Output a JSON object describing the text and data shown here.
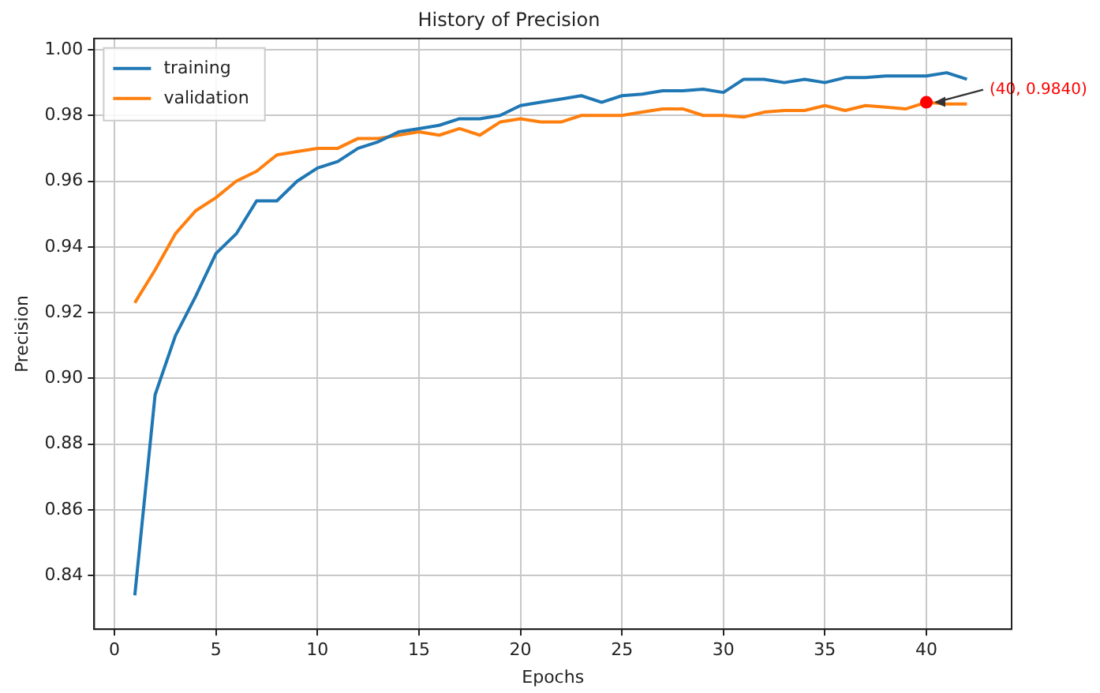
{
  "chart_data": {
    "type": "line",
    "title": "History of Precision",
    "xlabel": "Epochs",
    "ylabel": "Precision",
    "x": [
      1,
      2,
      3,
      4,
      5,
      6,
      7,
      8,
      9,
      10,
      11,
      12,
      13,
      14,
      15,
      16,
      17,
      18,
      19,
      20,
      21,
      22,
      23,
      24,
      25,
      26,
      27,
      28,
      29,
      30,
      31,
      32,
      33,
      34,
      35,
      36,
      37,
      38,
      39,
      40,
      41,
      42
    ],
    "series": [
      {
        "name": "training",
        "color": "#1f77b4",
        "values": [
          0.834,
          0.895,
          0.913,
          0.925,
          0.938,
          0.944,
          0.954,
          0.954,
          0.96,
          0.964,
          0.966,
          0.97,
          0.972,
          0.975,
          0.976,
          0.977,
          0.979,
          0.979,
          0.98,
          0.983,
          0.984,
          0.985,
          0.986,
          0.984,
          0.986,
          0.9865,
          0.9875,
          0.9875,
          0.988,
          0.987,
          0.991,
          0.991,
          0.99,
          0.991,
          0.99,
          0.9915,
          0.9915,
          0.992,
          0.992,
          0.992,
          0.993,
          0.991
        ]
      },
      {
        "name": "validation",
        "color": "#ff7f0e",
        "values": [
          0.923,
          0.933,
          0.944,
          0.951,
          0.955,
          0.96,
          0.963,
          0.968,
          0.969,
          0.97,
          0.97,
          0.973,
          0.973,
          0.974,
          0.975,
          0.974,
          0.976,
          0.974,
          0.978,
          0.979,
          0.978,
          0.978,
          0.98,
          0.98,
          0.98,
          0.981,
          0.982,
          0.982,
          0.98,
          0.98,
          0.9795,
          0.981,
          0.9815,
          0.9815,
          0.983,
          0.9815,
          0.983,
          0.9825,
          0.982,
          0.984,
          0.9835,
          0.9835
        ]
      }
    ],
    "xlim": [
      -1,
      44.2
    ],
    "xticks": [
      0,
      5,
      10,
      15,
      20,
      25,
      30,
      35,
      40
    ],
    "ylim": [
      0.8237,
      1.0034
    ],
    "yticks": [
      {
        "value": 0.84,
        "label": "0.84"
      },
      {
        "value": 0.86,
        "label": "0.86"
      },
      {
        "value": 0.88,
        "label": "0.88"
      },
      {
        "value": 0.9,
        "label": "0.90"
      },
      {
        "value": 0.92,
        "label": "0.92"
      },
      {
        "value": 0.94,
        "label": "0.94"
      },
      {
        "value": 0.96,
        "label": "0.96"
      },
      {
        "value": 0.98,
        "label": "0.98"
      },
      {
        "value": 1,
        "label": "1.00"
      }
    ],
    "annotations": [
      {
        "text": "(40, 0.9840)",
        "x": 40,
        "y": 0.984
      }
    ],
    "grid": true,
    "legend": "top left",
    "marker": "none",
    "line_style": "solid"
  }
}
